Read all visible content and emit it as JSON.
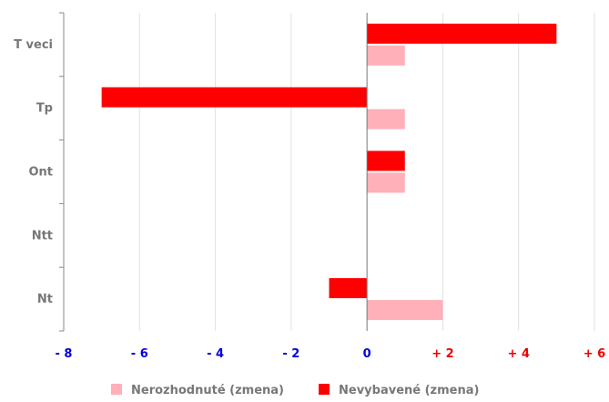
{
  "chart_data": {
    "type": "bar",
    "orientation": "horizontal",
    "categories": [
      "T veci",
      "Tp",
      "Ont",
      "Ntt",
      "Nt"
    ],
    "series": [
      {
        "name": "Nevybavené (zmena)",
        "color": "#ff0000",
        "values": [
          5,
          -7,
          1,
          0,
          -1
        ]
      },
      {
        "name": "Nerozhodnuté (zmena)",
        "color": "#ffb0b8",
        "values": [
          1,
          1,
          1,
          0,
          2
        ]
      }
    ],
    "xlim": [
      -8,
      6
    ],
    "x_ticks": [
      {
        "value": -8,
        "label": "- 8",
        "color": "#0000dd"
      },
      {
        "value": -6,
        "label": "- 6",
        "color": "#0000dd"
      },
      {
        "value": -4,
        "label": "- 4",
        "color": "#0000dd"
      },
      {
        "value": -2,
        "label": "- 2",
        "color": "#0000dd"
      },
      {
        "value": 0,
        "label": "0",
        "color": "#0000dd"
      },
      {
        "value": 2,
        "label": "+ 2",
        "color": "#ee0000"
      },
      {
        "value": 4,
        "label": "+ 4",
        "color": "#ee0000"
      },
      {
        "value": 6,
        "label": "+ 6",
        "color": "#ee0000"
      }
    ],
    "grid": true,
    "legend": {
      "position": "bottom",
      "items": [
        {
          "label": "Nerozhodnuté (zmena)",
          "color": "#ffb0b8"
        },
        {
          "label": "Nevybavené (zmena)",
          "color": "#ff0000"
        }
      ]
    }
  }
}
